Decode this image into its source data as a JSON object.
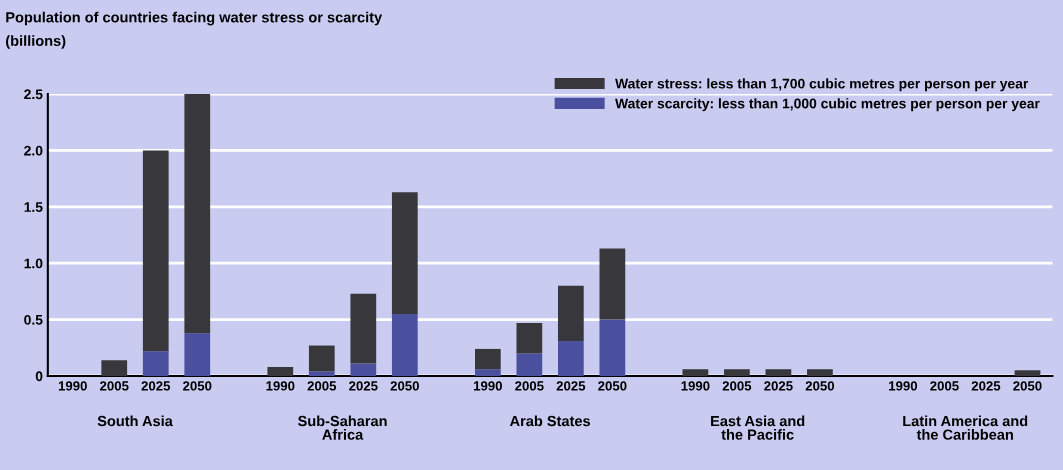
{
  "chart_data": {
    "type": "bar",
    "stacked": true,
    "title": "Population of countries facing water stress or scarcity",
    "ylabel": "(billions)",
    "categories": [
      "1990",
      "2005",
      "2025",
      "2050",
      null,
      "1990",
      "2005",
      "2025",
      "2050",
      null,
      "1990",
      "2005",
      "2025",
      "2050",
      null,
      "1990",
      "2005",
      "2025",
      "2050",
      null,
      "1990",
      "2005",
      "2025",
      "2050"
    ],
    "series": [
      {
        "name": "Water scarcity: less than 1,000 cubic metres per person per year",
        "color": "#4a4f9e",
        "values": [
          0,
          0,
          0.22,
          0.38,
          null,
          0,
          0.04,
          0.11,
          0.55,
          null,
          0.06,
          0.2,
          0.31,
          0.5,
          null,
          0,
          0,
          0,
          0,
          null,
          0,
          0,
          0,
          0
        ]
      },
      {
        "name": "Water stress: less than 1,700 cubic metres per person per year",
        "color": "#38383c",
        "values": [
          0,
          0.14,
          1.78,
          2.12,
          null,
          0.08,
          0.23,
          0.62,
          1.08,
          null,
          0.18,
          0.27,
          0.49,
          0.63,
          null,
          0.06,
          0.06,
          0.06,
          0.06,
          null,
          0,
          0,
          0,
          0.05
        ]
      }
    ],
    "annotations": [
      "South Asia",
      "Sub-Saharan\nAfrica",
      "Arab States",
      "East Asia and\nthe Pacific",
      "Latin America and\nthe Caribbean"
    ],
    "ylim": [
      0,
      2.5
    ],
    "yticks": [
      0,
      0.5,
      {
        "value": 1,
        "label": "1.0"
      },
      1.5,
      {
        "value": 2,
        "label": "2.0"
      },
      2.5
    ],
    "grid": "y",
    "legend": "top right"
  }
}
